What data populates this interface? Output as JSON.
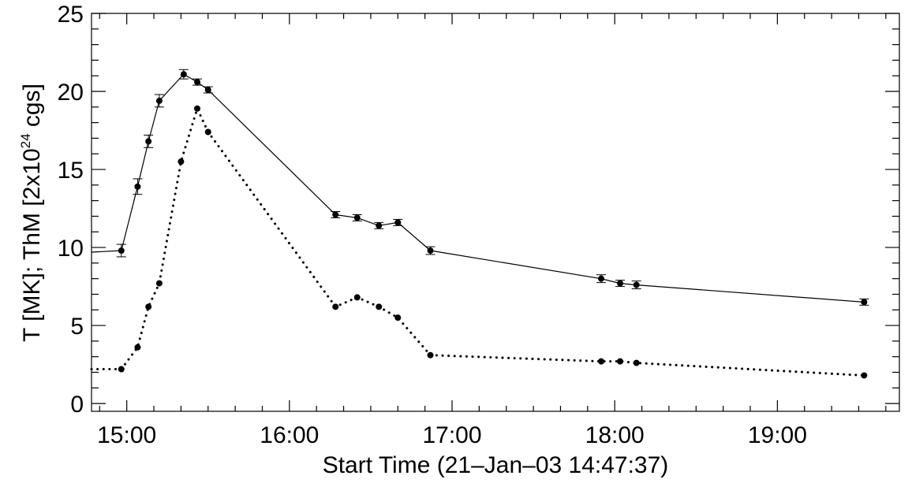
{
  "chart_data": {
    "type": "line",
    "xlabel": "Start Time (21–Jan–03 14:47:37)",
    "ylabel_parts": {
      "a": "T [MK];  ThM [2x10",
      "sup": "24",
      "b": " cgs]"
    },
    "x_axis_unit": "hh:mm",
    "xlim": [
      "14:47",
      "19:45"
    ],
    "ylim": [
      -0.5,
      25
    ],
    "x_tick_labels": [
      "15:00",
      "16:00",
      "17:00",
      "18:00",
      "19:00"
    ],
    "y_tick_labels": [
      "0",
      "5",
      "10",
      "15",
      "20",
      "25"
    ],
    "y_tick_values": [
      0,
      5,
      10,
      15,
      20,
      25
    ],
    "series": [
      {
        "style": "solid",
        "x": [
          "14:47",
          "14:58",
          "15:04",
          "15:08",
          "15:12",
          "15:21",
          "15:26",
          "15:30",
          "16:17",
          "16:25",
          "16:33",
          "16:40",
          "16:52",
          "17:55",
          "18:02",
          "18:08",
          "19:32"
        ],
        "y": [
          9.7,
          9.8,
          13.9,
          16.8,
          19.4,
          21.1,
          20.6,
          20.1,
          12.1,
          11.9,
          11.4,
          11.6,
          9.8,
          8.0,
          7.7,
          7.6,
          6.5
        ],
        "yerr": [
          null,
          0.4,
          0.5,
          0.4,
          0.4,
          0.3,
          0.2,
          0.2,
          0.2,
          0.2,
          0.2,
          0.2,
          0.25,
          0.25,
          0.2,
          0.25,
          0.2
        ]
      },
      {
        "style": "dotted",
        "x": [
          "14:47",
          "14:58",
          "15:04",
          "15:08",
          "15:12",
          "15:20",
          "15:26",
          "15:30",
          "16:17",
          "16:25",
          "16:33",
          "16:40",
          "16:52",
          "17:55",
          "18:02",
          "18:08",
          "19:32"
        ],
        "y": [
          2.2,
          2.2,
          3.6,
          6.2,
          7.7,
          15.5,
          18.9,
          17.4,
          6.2,
          6.8,
          6.2,
          5.5,
          3.1,
          2.7,
          2.7,
          2.6,
          1.8
        ]
      }
    ]
  }
}
